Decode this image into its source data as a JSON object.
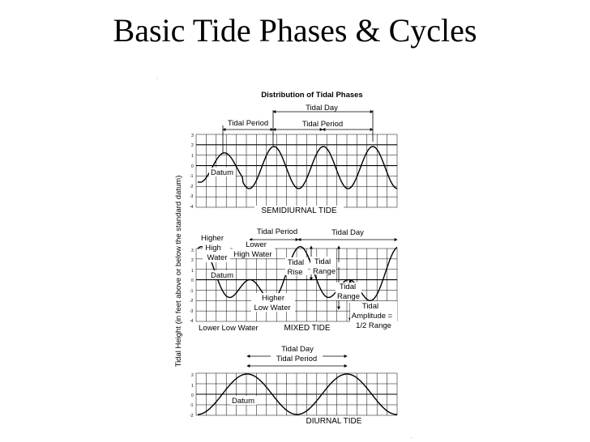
{
  "title": "Basic Tide Phases & Cycles",
  "figure": {
    "title": "Distribution of Tidal Phases",
    "y_axis_label": "Tidal Height (in feet above or below the standard datum)",
    "panels": [
      {
        "id": "semidiurnal",
        "name": "SEMIDIURNAL TIDE",
        "ticks": [
          "3",
          "2",
          "1",
          "0",
          "-1",
          "-2",
          "-3",
          "-4"
        ],
        "labels": {
          "tidal_day": "Tidal Day",
          "tidal_period_1": "Tidal Period",
          "tidal_period_2": "Tidal Period",
          "datum": "Datum"
        }
      },
      {
        "id": "mixed",
        "name": "MIXED TIDE",
        "ticks": [
          "3",
          "2",
          "1",
          "0",
          "-1",
          "-2",
          "-3",
          "-4"
        ],
        "labels": {
          "tidal_period": "Tidal Period",
          "tidal_day": "Tidal Day",
          "higher_high_water": [
            "Higher",
            "High",
            "Water"
          ],
          "lower_high_water": [
            "Lower",
            "High Water"
          ],
          "tidal_rise": [
            "Tidal",
            "Rise"
          ],
          "tidal_range_1": [
            "Tidal",
            "Range"
          ],
          "tidal_range_2": [
            "Tidal",
            "Range"
          ],
          "tidal_amplitude": [
            "Tidal",
            "Amplitude =",
            "1/2 Range"
          ],
          "higher_low_water": [
            "Higher",
            "Low Water"
          ],
          "lower_low_water": "Lower Low Water",
          "datum": "Datum"
        }
      },
      {
        "id": "diurnal",
        "name": "DIURNAL TIDE",
        "ticks": [
          "2",
          "1",
          "0",
          "-1",
          "-2"
        ],
        "labels": {
          "tidal_day": "Tidal Day",
          "tidal_period": "Tidal Period",
          "datum": "Datum"
        }
      }
    ]
  }
}
